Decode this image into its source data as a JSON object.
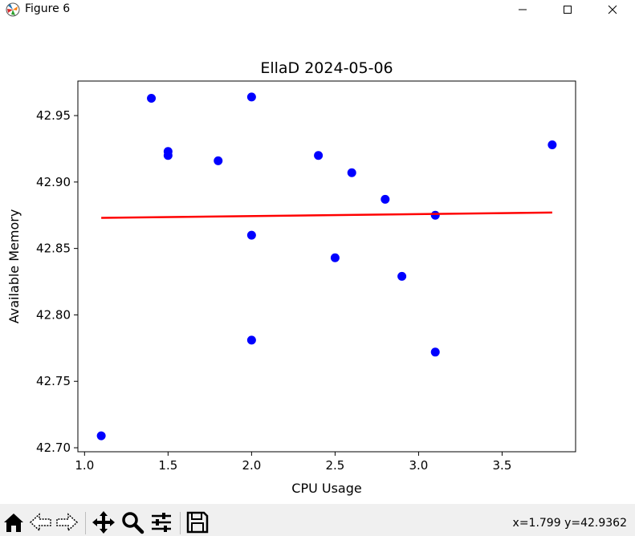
{
  "window": {
    "title": "Figure 6",
    "minimize_icon": "minimize-icon",
    "maximize_icon": "maximize-icon",
    "close_icon": "close-icon"
  },
  "toolbar": {
    "buttons": [
      "home-icon",
      "back-icon",
      "forward-icon",
      "pan-icon",
      "zoom-icon",
      "configure-subplots-icon",
      "save-icon"
    ],
    "coords": "x=1.799 y=42.9362"
  },
  "chart_data": {
    "type": "scatter",
    "title": "EllaD 2024-05-06",
    "xlabel": "CPU Usage",
    "ylabel": "Available Memory",
    "xlim": [
      0.96,
      3.94
    ],
    "ylim": [
      42.697,
      42.976
    ],
    "xticks": [
      1.0,
      1.5,
      2.0,
      2.5,
      3.0,
      3.5
    ],
    "xtick_labels": [
      "1.0",
      "1.5",
      "2.0",
      "2.5",
      "3.0",
      "3.5"
    ],
    "yticks": [
      42.7,
      42.75,
      42.8,
      42.85,
      42.9,
      42.95
    ],
    "ytick_labels": [
      "42.70",
      "42.75",
      "42.80",
      "42.85",
      "42.90",
      "42.95"
    ],
    "grid": false,
    "points": {
      "color": "#0000ff",
      "x": [
        1.1,
        1.4,
        1.5,
        1.5,
        1.8,
        2.0,
        2.0,
        2.0,
        2.4,
        2.5,
        2.6,
        2.8,
        2.9,
        3.1,
        3.1,
        3.8
      ],
      "y": [
        42.709,
        42.963,
        42.923,
        42.92,
        42.916,
        42.964,
        42.86,
        42.781,
        42.92,
        42.843,
        42.907,
        42.887,
        42.829,
        42.875,
        42.772,
        42.928
      ]
    },
    "trendline": {
      "color": "#ff0000",
      "x": [
        1.1,
        3.8
      ],
      "y": [
        42.873,
        42.877
      ]
    }
  }
}
